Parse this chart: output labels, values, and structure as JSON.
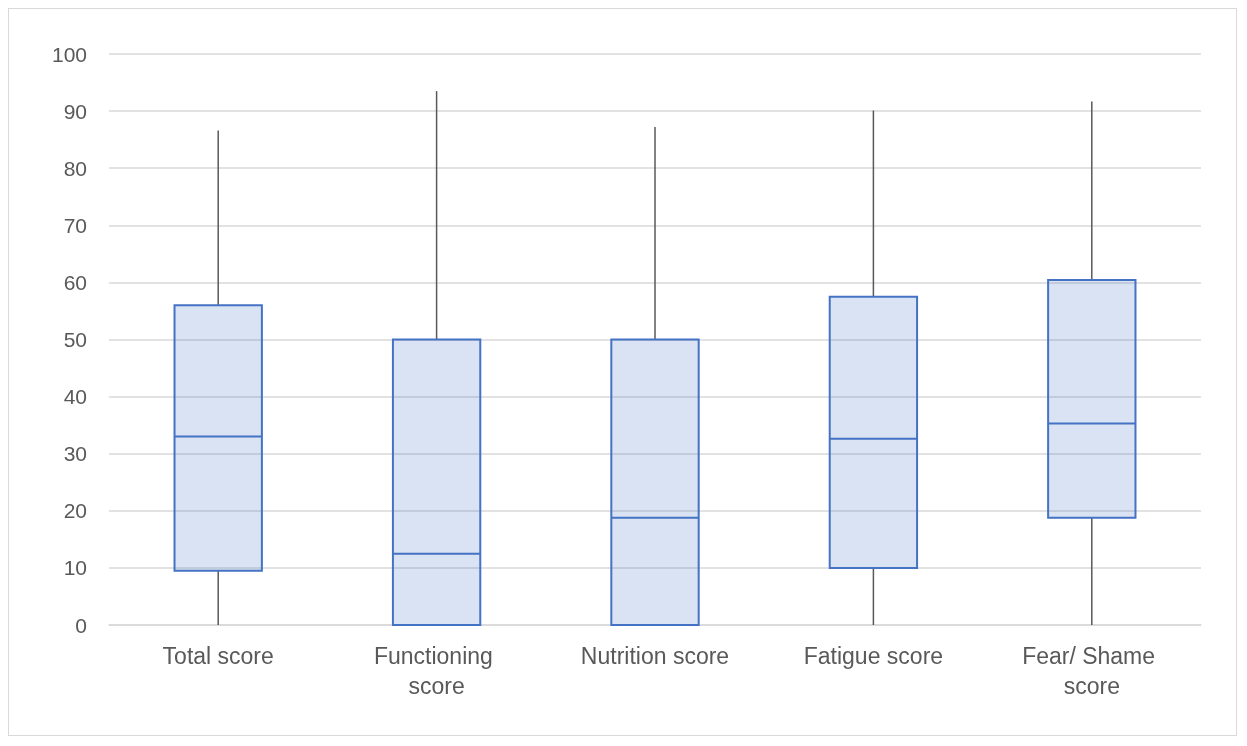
{
  "chart_data": {
    "type": "box",
    "categories": [
      "Total score",
      "Functioning score",
      "Nutrition score",
      "Fatigue score",
      "Fear/ Shame score"
    ],
    "series": [
      {
        "color": "#4472c4",
        "boxes": [
          {
            "low": 0,
            "q1": 9.5,
            "median": 33,
            "q3": 56,
            "high": 86.6
          },
          {
            "low": 0,
            "q1": 0,
            "median": 12.5,
            "q3": 50,
            "high": 93.5
          },
          {
            "low": 0,
            "q1": 0,
            "median": 18.8,
            "q3": 50,
            "high": 87.2
          },
          {
            "low": 0,
            "q1": 10,
            "median": 32.6,
            "q3": 57.5,
            "high": 90.1
          },
          {
            "low": 0,
            "q1": 18.8,
            "median": 35.3,
            "q3": 60.4,
            "high": 91.7
          }
        ]
      }
    ],
    "ylim": [
      0,
      100
    ],
    "yticks": [
      0,
      10,
      20,
      30,
      40,
      50,
      60,
      70,
      80,
      90,
      100
    ],
    "grid": "y"
  }
}
